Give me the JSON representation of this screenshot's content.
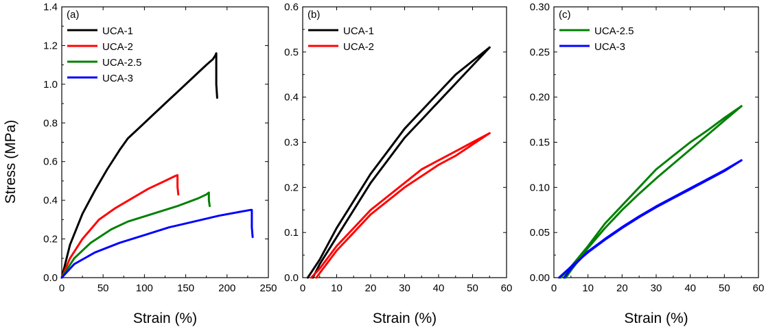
{
  "figure": {
    "ylabel_shared": "Stress (MPa)"
  },
  "chart_data": [
    {
      "type": "line",
      "panel": "(a)",
      "xlabel": "Strain (%)",
      "ylabel": "Stress (MPa)",
      "xlim": [
        0,
        250
      ],
      "ylim": [
        0,
        1.4
      ],
      "xticks": [
        "0",
        "50",
        "100",
        "150",
        "200",
        "250"
      ],
      "yticks": [
        "0.0",
        "0.2",
        "0.4",
        "0.6",
        "0.8",
        "1.0",
        "1.2",
        "1.4"
      ],
      "legend_position": "top-left",
      "series": [
        {
          "name": "UCA-1",
          "color": "#000000",
          "x": [
            0,
            10,
            25,
            40,
            55,
            70,
            80,
            90,
            110,
            130,
            150,
            165,
            175,
            183,
            186,
            187,
            187,
            188
          ],
          "y": [
            0,
            0.17,
            0.33,
            0.45,
            0.56,
            0.66,
            0.72,
            0.76,
            0.84,
            0.92,
            1.0,
            1.06,
            1.1,
            1.13,
            1.15,
            1.16,
            1.0,
            0.93
          ]
        },
        {
          "name": "UCA-2",
          "color": "#ff0000",
          "x": [
            0,
            10,
            25,
            45,
            65,
            85,
            105,
            125,
            137,
            140,
            140,
            141
          ],
          "y": [
            0,
            0.1,
            0.2,
            0.3,
            0.36,
            0.41,
            0.46,
            0.5,
            0.525,
            0.53,
            0.47,
            0.43
          ]
        },
        {
          "name": "UCA-2.5",
          "color": "#008000",
          "x": [
            0,
            15,
            35,
            60,
            80,
            110,
            140,
            165,
            175,
            178,
            178,
            179
          ],
          "y": [
            0,
            0.1,
            0.18,
            0.25,
            0.29,
            0.33,
            0.37,
            0.41,
            0.43,
            0.44,
            0.4,
            0.37
          ]
        },
        {
          "name": "UCA-3",
          "color": "#0000ff",
          "x": [
            0,
            15,
            40,
            70,
            100,
            130,
            160,
            190,
            215,
            228,
            230,
            230,
            231
          ],
          "y": [
            0,
            0.07,
            0.13,
            0.18,
            0.22,
            0.26,
            0.29,
            0.32,
            0.34,
            0.35,
            0.35,
            0.26,
            0.21
          ]
        }
      ]
    },
    {
      "type": "line",
      "panel": "(b)",
      "xlabel": "Strain (%)",
      "ylabel": "",
      "xlim": [
        0,
        60
      ],
      "ylim": [
        0,
        0.6
      ],
      "xticks": [
        "0",
        "10",
        "20",
        "30",
        "40",
        "50",
        "60"
      ],
      "yticks": [
        "0.0",
        "0.1",
        "0.2",
        "0.3",
        "0.4",
        "0.5",
        "0.6"
      ],
      "legend_position": "top-left",
      "series": [
        {
          "name": "UCA-1",
          "color": "#000000",
          "loading": {
            "x": [
              1.5,
              5,
              10,
              15,
              20,
              25,
              30,
              35,
              40,
              45,
              50,
              55
            ],
            "y": [
              0,
              0.04,
              0.11,
              0.17,
              0.23,
              0.28,
              0.33,
              0.37,
              0.41,
              0.45,
              0.48,
              0.51
            ]
          },
          "unloading": {
            "x": [
              55,
              50,
              45,
              40,
              35,
              30,
              25,
              20,
              15,
              10,
              5,
              3
            ],
            "y": [
              0.51,
              0.47,
              0.43,
              0.39,
              0.35,
              0.31,
              0.26,
              0.21,
              0.15,
              0.09,
              0.03,
              0
            ]
          }
        },
        {
          "name": "UCA-2",
          "color": "#ff0000",
          "loading": {
            "x": [
              2.5,
              5,
              10,
              15,
              20,
              25,
              30,
              35,
              40,
              45,
              50,
              55
            ],
            "y": [
              0,
              0.02,
              0.07,
              0.11,
              0.15,
              0.18,
              0.21,
              0.24,
              0.26,
              0.28,
              0.3,
              0.32
            ]
          },
          "unloading": {
            "x": [
              55,
              50,
              45,
              40,
              35,
              30,
              25,
              20,
              15,
              10,
              5,
              4
            ],
            "y": [
              0.32,
              0.295,
              0.27,
              0.25,
              0.225,
              0.2,
              0.17,
              0.14,
              0.1,
              0.06,
              0.01,
              0
            ]
          }
        }
      ]
    },
    {
      "type": "line",
      "panel": "(c)",
      "xlabel": "Strain (%)",
      "ylabel": "",
      "xlim": [
        0,
        60
      ],
      "ylim": [
        0,
        0.3
      ],
      "xticks": [
        "0",
        "10",
        "20",
        "30",
        "40",
        "50",
        "60"
      ],
      "yticks": [
        "0.00",
        "0.05",
        "0.10",
        "0.15",
        "0.20",
        "0.25",
        "0.30"
      ],
      "legend_position": "top-left",
      "series": [
        {
          "name": "UCA-2.5",
          "color": "#008000",
          "loading": {
            "x": [
              2,
              5,
              10,
              15,
              20,
              25,
              30,
              35,
              40,
              45,
              50,
              55
            ],
            "y": [
              0,
              0.012,
              0.035,
              0.06,
              0.08,
              0.1,
              0.12,
              0.135,
              0.15,
              0.163,
              0.177,
              0.19
            ]
          },
          "unloading": {
            "x": [
              55,
              50,
              45,
              40,
              35,
              30,
              25,
              20,
              15,
              10,
              5,
              3.5
            ],
            "y": [
              0.19,
              0.174,
              0.158,
              0.142,
              0.126,
              0.11,
              0.093,
              0.075,
              0.055,
              0.033,
              0.008,
              0
            ]
          }
        },
        {
          "name": "UCA-3",
          "color": "#0000ff",
          "loading": {
            "x": [
              1.5,
              5,
              10,
              15,
              20,
              25,
              30,
              35,
              40,
              45,
              50,
              55
            ],
            "y": [
              0,
              0.012,
              0.028,
              0.042,
              0.055,
              0.067,
              0.078,
              0.088,
              0.098,
              0.108,
              0.118,
              0.13
            ]
          },
          "unloading": {
            "x": [
              55,
              50,
              45,
              40,
              35,
              30,
              25,
              20,
              15,
              10,
              5,
              3
            ],
            "y": [
              0.13,
              0.119,
              0.109,
              0.099,
              0.089,
              0.079,
              0.068,
              0.056,
              0.043,
              0.029,
              0.01,
              0
            ]
          }
        }
      ]
    }
  ]
}
